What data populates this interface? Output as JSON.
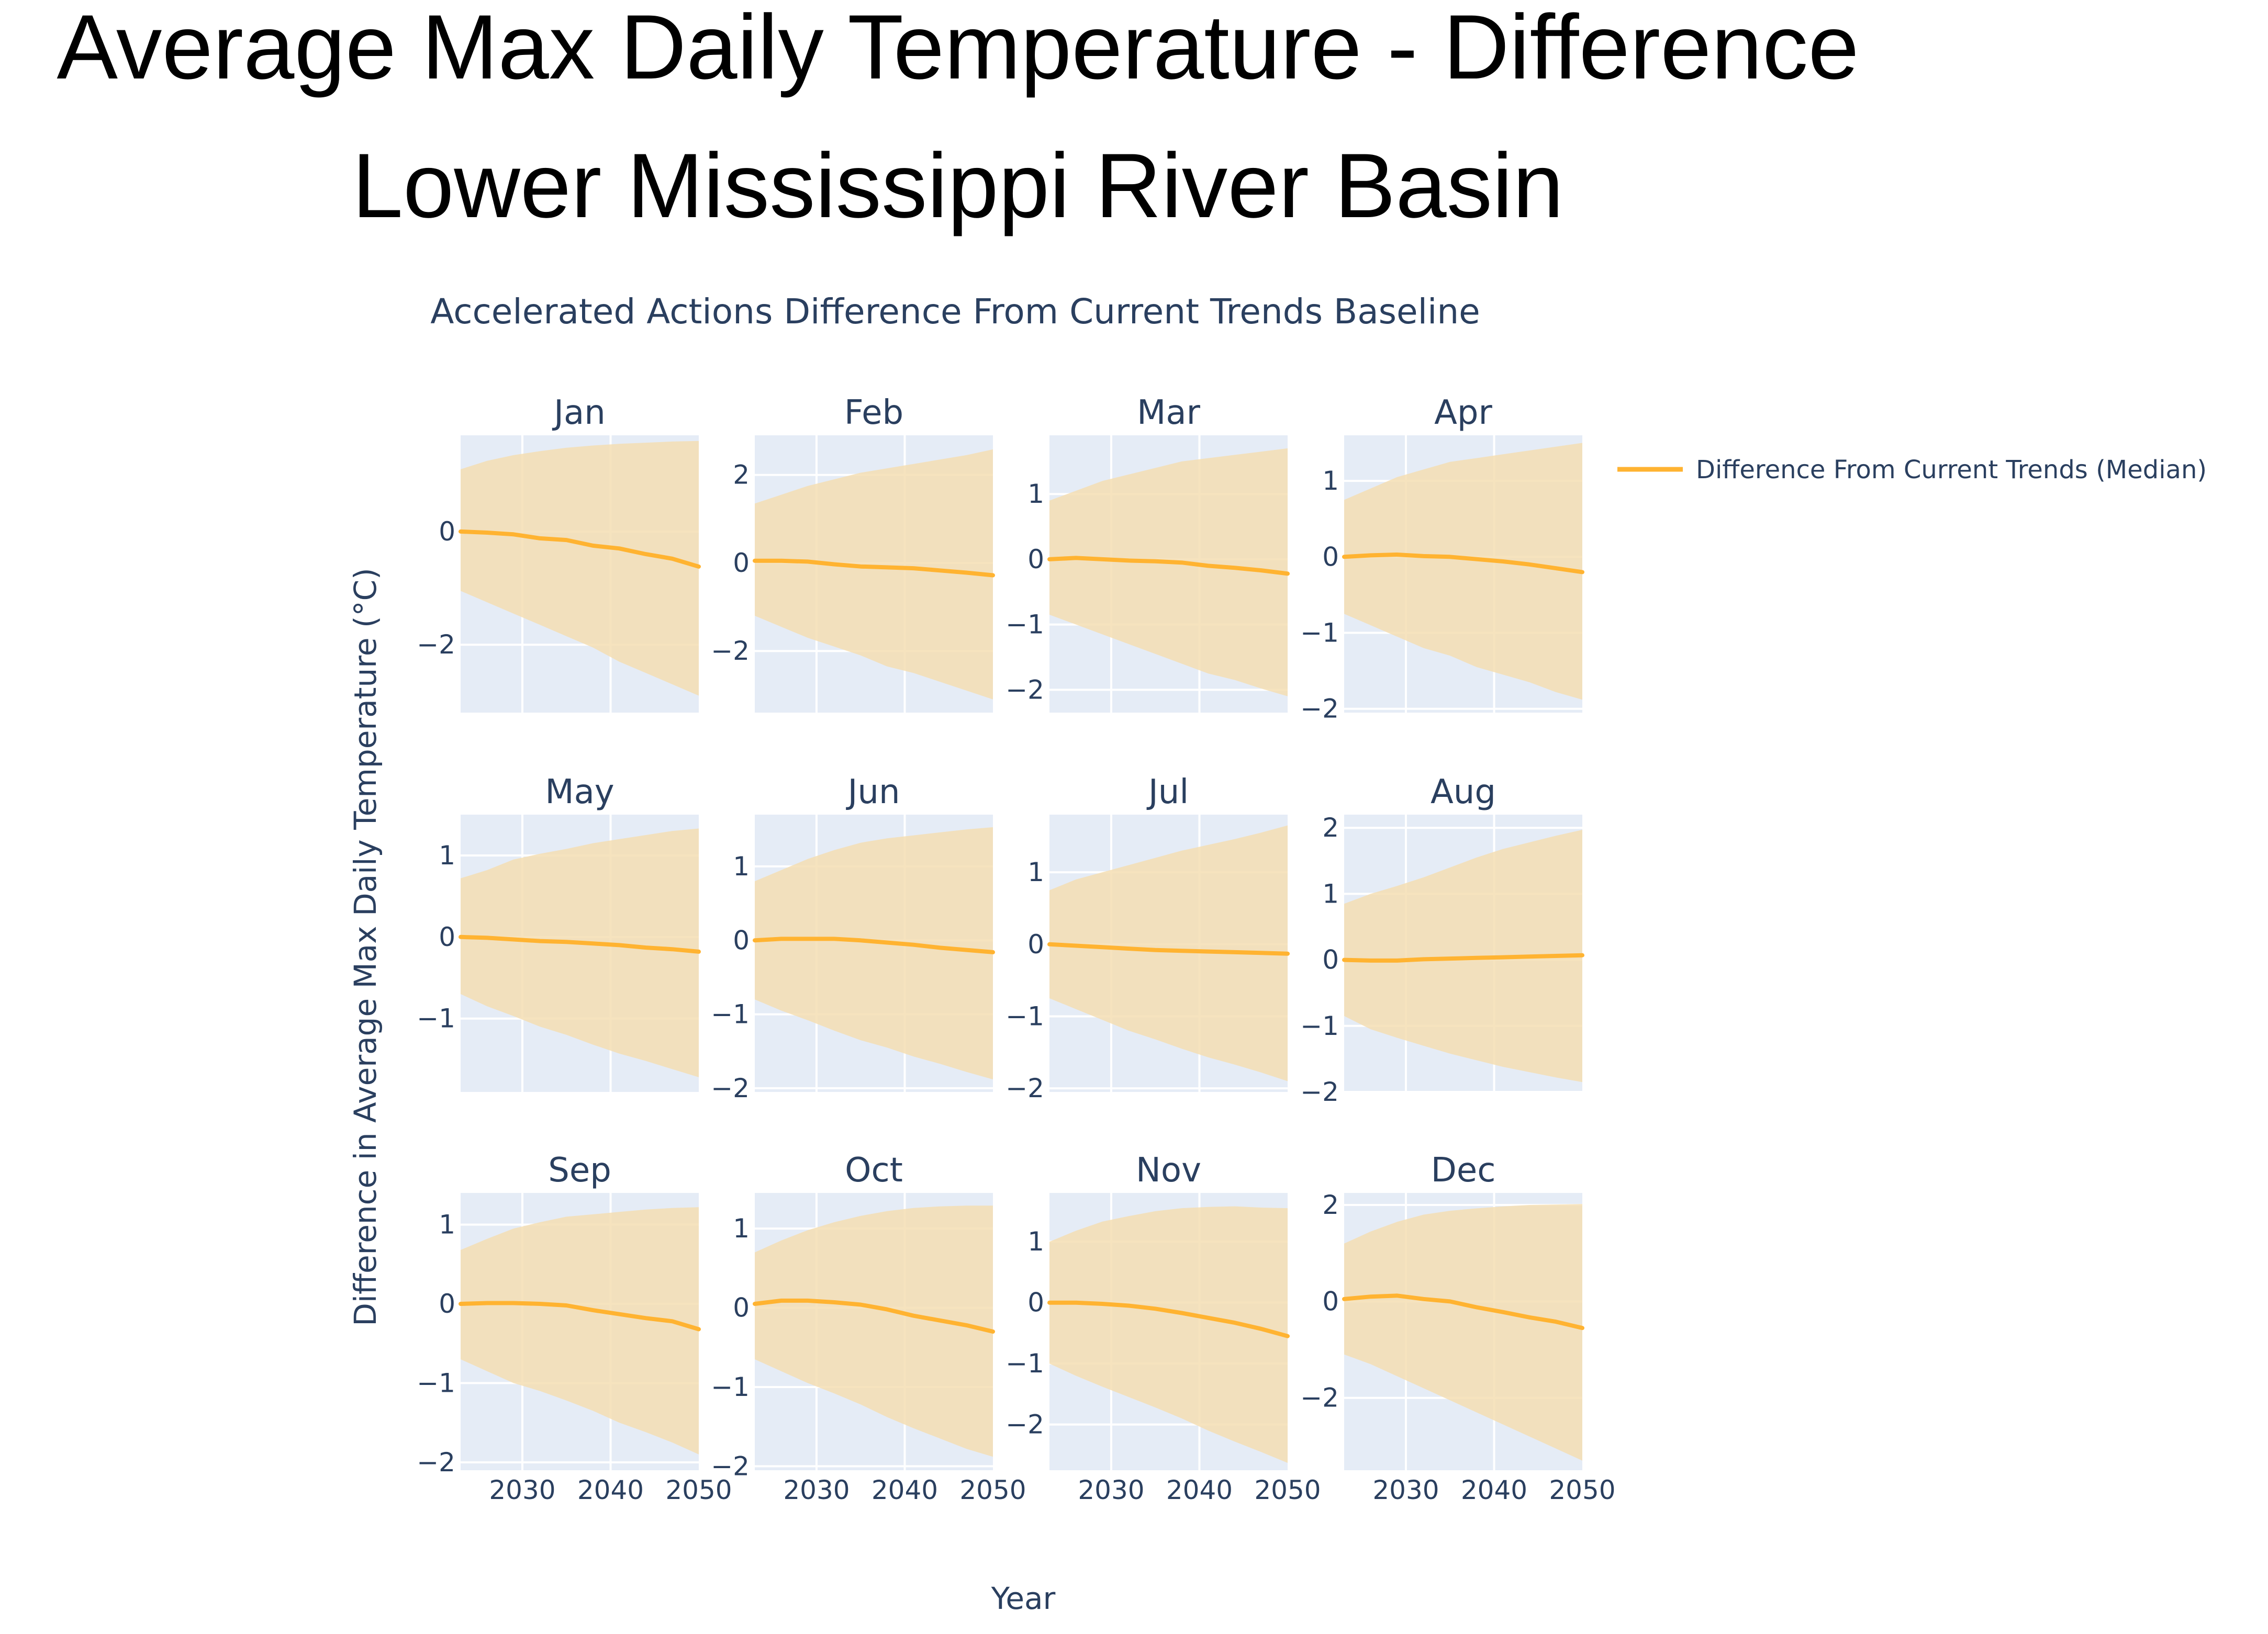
{
  "title_lines": [
    "Average Max Daily Temperature - Difference",
    "Lower Mississippi River Basin"
  ],
  "subtitle": "Accelerated Actions Difference From Current Trends Baseline",
  "xlabel": "Year",
  "ylabel": "Difference in Average Max Daily Temperature (°C)",
  "legend": {
    "label": "Difference From Current Trends (Median)",
    "position": "top-right"
  },
  "colors": {
    "median": "#ffb331",
    "band": "#f5deb3",
    "plot_bg": "#e5ecf6",
    "grid": "#ffffff",
    "text": "#2a3f5f"
  },
  "x_ticks": [
    2030,
    2040,
    2050
  ],
  "chart_data": {
    "type": "line",
    "xlim": [
      2023,
      2050
    ],
    "grid": true,
    "x": [
      2023,
      2026,
      2029,
      2032,
      2035,
      2038,
      2041,
      2044,
      2047,
      2050
    ],
    "panels": [
      {
        "name": "Jan",
        "ylim": [
          -3.2,
          1.7
        ],
        "yticks": [
          -2,
          0
        ],
        "median": [
          0.0,
          -0.02,
          -0.05,
          -0.12,
          -0.15,
          -0.25,
          -0.3,
          -0.4,
          -0.48,
          -0.62
        ],
        "upper": [
          1.1,
          1.25,
          1.35,
          1.42,
          1.48,
          1.52,
          1.55,
          1.57,
          1.59,
          1.6
        ],
        "lower": [
          -1.05,
          -1.25,
          -1.45,
          -1.65,
          -1.85,
          -2.05,
          -2.3,
          -2.5,
          -2.7,
          -2.9
        ]
      },
      {
        "name": "Feb",
        "ylim": [
          -3.4,
          2.9
        ],
        "yticks": [
          -2,
          0,
          2
        ],
        "median": [
          0.05,
          0.05,
          0.03,
          -0.03,
          -0.08,
          -0.1,
          -0.12,
          -0.17,
          -0.22,
          -0.28
        ],
        "upper": [
          1.35,
          1.55,
          1.75,
          1.9,
          2.05,
          2.15,
          2.25,
          2.35,
          2.45,
          2.58
        ],
        "lower": [
          -1.2,
          -1.45,
          -1.7,
          -1.9,
          -2.1,
          -2.35,
          -2.5,
          -2.7,
          -2.9,
          -3.1
        ]
      },
      {
        "name": "Mar",
        "ylim": [
          -2.35,
          1.9
        ],
        "yticks": [
          -2,
          -1,
          0,
          1
        ],
        "median": [
          0.0,
          0.02,
          0.0,
          -0.02,
          -0.03,
          -0.05,
          -0.1,
          -0.13,
          -0.17,
          -0.22
        ],
        "upper": [
          0.9,
          1.05,
          1.2,
          1.3,
          1.4,
          1.5,
          1.55,
          1.6,
          1.65,
          1.7
        ],
        "lower": [
          -0.85,
          -1.0,
          -1.15,
          -1.3,
          -1.45,
          -1.6,
          -1.75,
          -1.85,
          -1.98,
          -2.1
        ]
      },
      {
        "name": "Apr",
        "ylim": [
          -2.05,
          1.6
        ],
        "yticks": [
          -2,
          -1,
          0,
          1
        ],
        "median": [
          0.0,
          0.02,
          0.03,
          0.01,
          0.0,
          -0.03,
          -0.06,
          -0.1,
          -0.15,
          -0.2
        ],
        "upper": [
          0.75,
          0.9,
          1.05,
          1.15,
          1.25,
          1.3,
          1.35,
          1.4,
          1.45,
          1.5
        ],
        "lower": [
          -0.75,
          -0.9,
          -1.05,
          -1.2,
          -1.3,
          -1.45,
          -1.55,
          -1.65,
          -1.78,
          -1.88
        ]
      },
      {
        "name": "May",
        "ylim": [
          -1.9,
          1.5
        ],
        "yticks": [
          -1,
          0,
          1
        ],
        "median": [
          0.0,
          -0.01,
          -0.03,
          -0.05,
          -0.06,
          -0.08,
          -0.1,
          -0.13,
          -0.15,
          -0.18
        ],
        "upper": [
          0.72,
          0.82,
          0.95,
          1.02,
          1.08,
          1.15,
          1.2,
          1.25,
          1.3,
          1.33
        ],
        "lower": [
          -0.7,
          -0.85,
          -0.97,
          -1.1,
          -1.2,
          -1.32,
          -1.43,
          -1.52,
          -1.62,
          -1.72
        ]
      },
      {
        "name": "Jun",
        "ylim": [
          -2.05,
          1.7
        ],
        "yticks": [
          -2,
          -1,
          0,
          1
        ],
        "median": [
          0.0,
          0.02,
          0.02,
          0.02,
          0.0,
          -0.03,
          -0.06,
          -0.1,
          -0.13,
          -0.16
        ],
        "upper": [
          0.8,
          0.95,
          1.1,
          1.22,
          1.32,
          1.38,
          1.42,
          1.46,
          1.5,
          1.53
        ],
        "lower": [
          -0.8,
          -0.95,
          -1.08,
          -1.22,
          -1.35,
          -1.45,
          -1.57,
          -1.67,
          -1.78,
          -1.88
        ]
      },
      {
        "name": "Jul",
        "ylim": [
          -2.05,
          1.8
        ],
        "yticks": [
          -2,
          -1,
          0,
          1
        ],
        "median": [
          0.0,
          -0.02,
          -0.04,
          -0.06,
          -0.08,
          -0.09,
          -0.1,
          -0.11,
          -0.12,
          -0.13
        ],
        "upper": [
          0.75,
          0.9,
          1.0,
          1.1,
          1.2,
          1.3,
          1.38,
          1.46,
          1.55,
          1.65
        ],
        "lower": [
          -0.75,
          -0.9,
          -1.05,
          -1.2,
          -1.32,
          -1.45,
          -1.57,
          -1.67,
          -1.78,
          -1.9
        ]
      },
      {
        "name": "Aug",
        "ylim": [
          -2.0,
          2.2
        ],
        "yticks": [
          -2,
          -1,
          0,
          1,
          2
        ],
        "median": [
          0.0,
          -0.01,
          -0.01,
          0.01,
          0.02,
          0.03,
          0.04,
          0.05,
          0.06,
          0.07
        ],
        "upper": [
          0.85,
          1.0,
          1.12,
          1.25,
          1.4,
          1.55,
          1.68,
          1.78,
          1.88,
          1.97
        ],
        "lower": [
          -0.85,
          -1.05,
          -1.18,
          -1.3,
          -1.42,
          -1.52,
          -1.62,
          -1.7,
          -1.78,
          -1.85
        ]
      },
      {
        "name": "Sep",
        "ylim": [
          -2.1,
          1.4
        ],
        "yticks": [
          -2,
          -1,
          0,
          1
        ],
        "median": [
          0.0,
          0.01,
          0.01,
          0.0,
          -0.02,
          -0.08,
          -0.13,
          -0.18,
          -0.22,
          -0.32
        ],
        "upper": [
          0.68,
          0.82,
          0.95,
          1.03,
          1.1,
          1.13,
          1.16,
          1.19,
          1.21,
          1.22
        ],
        "lower": [
          -0.7,
          -0.85,
          -1.0,
          -1.1,
          -1.22,
          -1.35,
          -1.5,
          -1.62,
          -1.75,
          -1.9
        ]
      },
      {
        "name": "Oct",
        "ylim": [
          -2.05,
          1.45
        ],
        "yticks": [
          -2,
          -1,
          0,
          1
        ],
        "median": [
          0.05,
          0.09,
          0.09,
          0.07,
          0.04,
          -0.02,
          -0.1,
          -0.16,
          -0.22,
          -0.3
        ],
        "upper": [
          0.7,
          0.85,
          0.98,
          1.08,
          1.16,
          1.22,
          1.26,
          1.28,
          1.29,
          1.29
        ],
        "lower": [
          -0.65,
          -0.8,
          -0.95,
          -1.08,
          -1.22,
          -1.38,
          -1.52,
          -1.65,
          -1.78,
          -1.88
        ]
      },
      {
        "name": "Nov",
        "ylim": [
          -2.75,
          1.8
        ],
        "yticks": [
          -2,
          -1,
          0,
          1
        ],
        "median": [
          0.0,
          0.0,
          -0.02,
          -0.05,
          -0.1,
          -0.17,
          -0.25,
          -0.33,
          -0.43,
          -0.55
        ],
        "upper": [
          1.0,
          1.18,
          1.33,
          1.42,
          1.5,
          1.55,
          1.57,
          1.58,
          1.56,
          1.55
        ],
        "lower": [
          -1.0,
          -1.2,
          -1.38,
          -1.55,
          -1.72,
          -1.9,
          -2.1,
          -2.28,
          -2.45,
          -2.63
        ]
      },
      {
        "name": "Dec",
        "ylim": [
          -3.5,
          2.25
        ],
        "yticks": [
          -2,
          0,
          2
        ],
        "median": [
          0.05,
          0.1,
          0.12,
          0.05,
          0.0,
          -0.12,
          -0.22,
          -0.33,
          -0.42,
          -0.55
        ],
        "upper": [
          1.2,
          1.45,
          1.65,
          1.8,
          1.88,
          1.93,
          1.97,
          2.0,
          2.01,
          2.02
        ],
        "lower": [
          -1.1,
          -1.3,
          -1.55,
          -1.8,
          -2.05,
          -2.3,
          -2.55,
          -2.8,
          -3.05,
          -3.3
        ]
      }
    ]
  }
}
